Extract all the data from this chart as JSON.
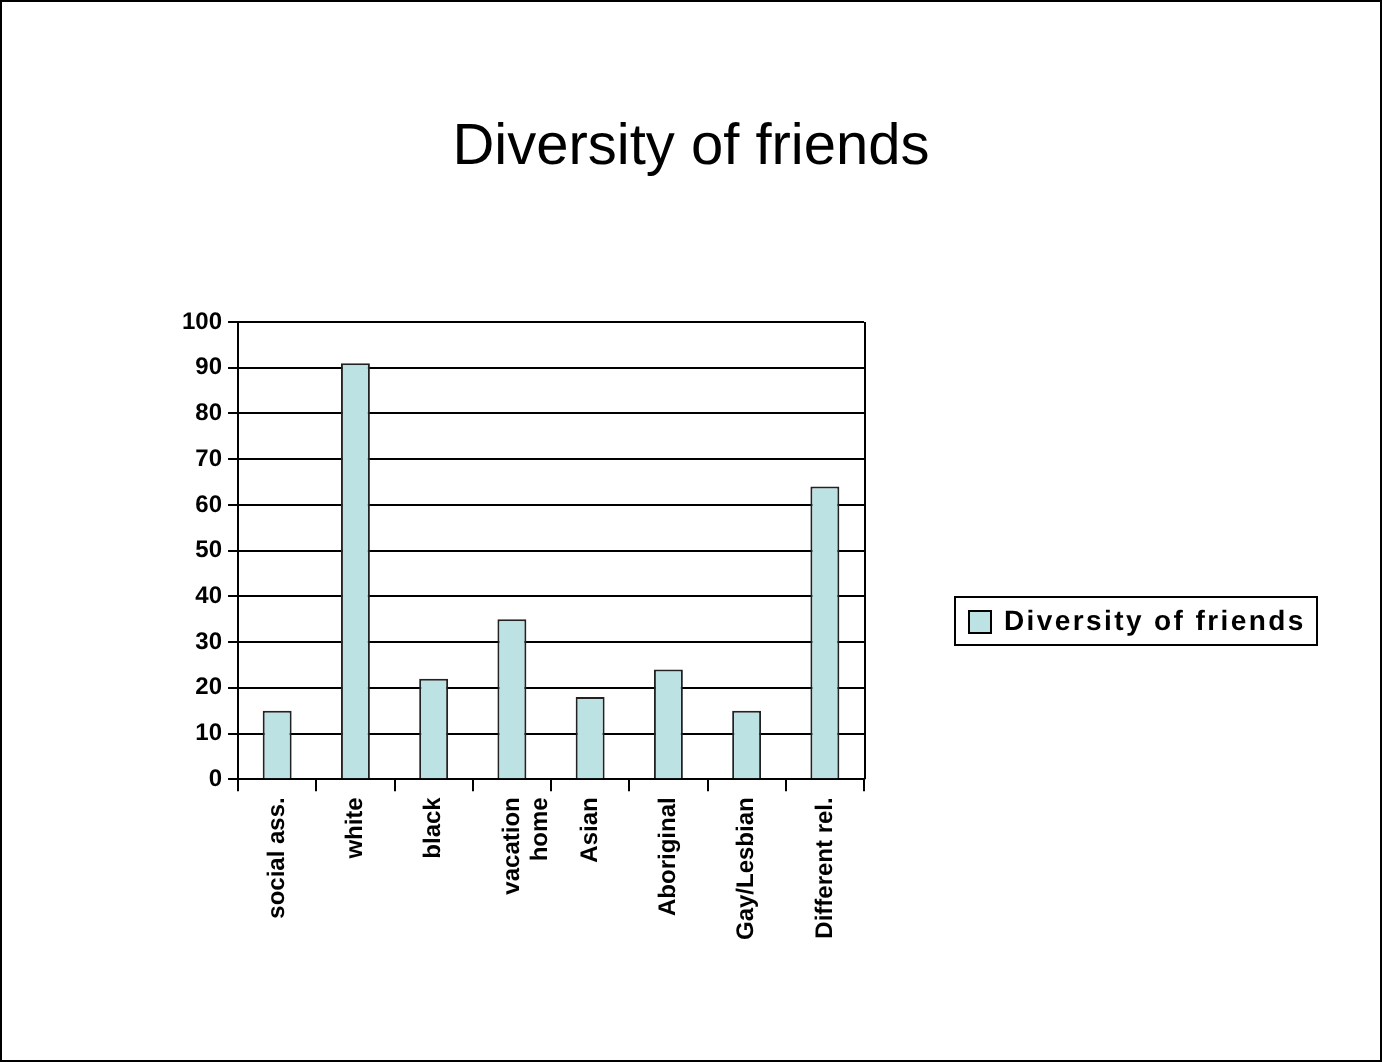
{
  "chart_data": {
    "type": "bar",
    "title": "Diversity of friends",
    "categories": [
      "social ass.",
      "white",
      "black",
      "vacation\nhome",
      "Asian",
      "Aboriginal",
      "Gay/Lesbian",
      "Different rel."
    ],
    "series": [
      {
        "name": "Diversity of friends",
        "color": "#bde2e4",
        "values": [
          15,
          91,
          22,
          35,
          18,
          24,
          15,
          64
        ]
      }
    ],
    "ylim": [
      0,
      100
    ],
    "yticks": [
      0,
      10,
      20,
      30,
      40,
      50,
      60,
      70,
      80,
      90,
      100
    ],
    "grid": "y",
    "legend": "right"
  }
}
